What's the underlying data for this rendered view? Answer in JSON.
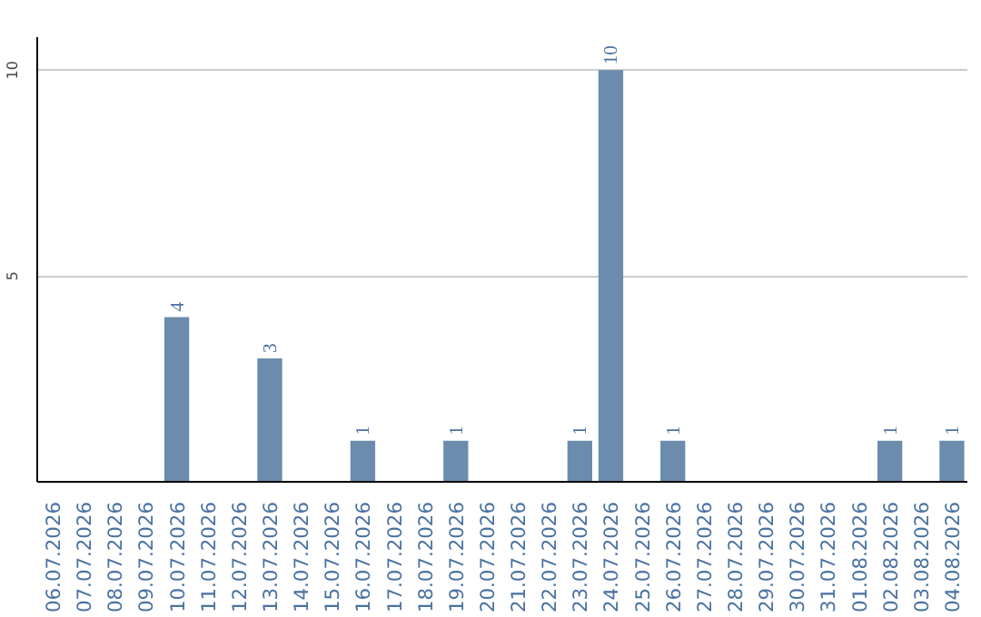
{
  "chart_data": {
    "type": "bar",
    "categories": [
      "06.07.2026",
      "07.07.2026",
      "08.07.2026",
      "09.07.2026",
      "10.07.2026",
      "11.07.2026",
      "12.07.2026",
      "13.07.2026",
      "14.07.2026",
      "15.07.2026",
      "16.07.2026",
      "17.07.2026",
      "18.07.2026",
      "19.07.2026",
      "20.07.2026",
      "21.07.2026",
      "22.07.2026",
      "23.07.2026",
      "24.07.2026",
      "25.07.2026",
      "26.07.2026",
      "27.07.2026",
      "28.07.2026",
      "29.07.2026",
      "30.07.2026",
      "31.07.2026",
      "01.08.2026",
      "02.08.2026",
      "03.08.2026",
      "04.08.2026"
    ],
    "values": [
      0,
      0,
      0,
      0,
      4,
      0,
      0,
      3,
      0,
      0,
      1,
      0,
      0,
      1,
      0,
      0,
      0,
      1,
      10,
      0,
      1,
      0,
      0,
      0,
      0,
      0,
      0,
      1,
      0,
      1
    ],
    "value_labels": [
      null,
      null,
      null,
      null,
      "4",
      null,
      null,
      "3",
      null,
      null,
      "1",
      null,
      null,
      "1",
      null,
      null,
      null,
      "1",
      "10",
      null,
      "1",
      null,
      null,
      null,
      null,
      null,
      null,
      "1",
      null,
      "1"
    ],
    "color": "#6b8cad",
    "ylim": [
      0,
      10.8
    ],
    "yticks": [
      {
        "value": 0,
        "label": null
      },
      5,
      10
    ],
    "grid": "y"
  }
}
